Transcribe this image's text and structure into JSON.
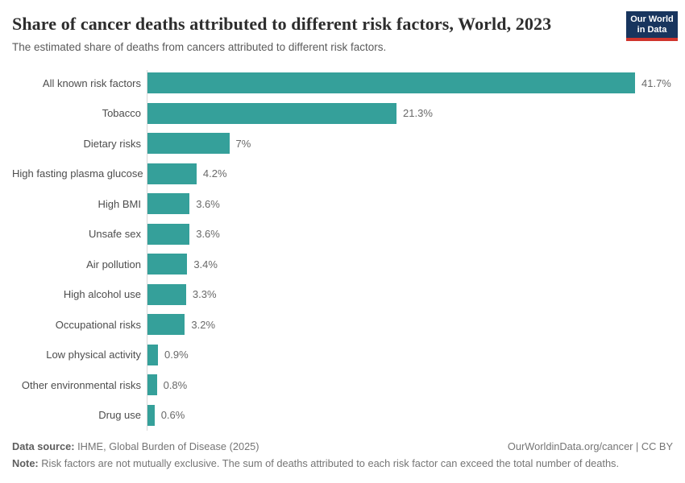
{
  "header": {
    "title": "Share of cancer deaths attributed to different risk factors, World, 2023",
    "subtitle": "The estimated share of deaths from cancers attributed to different risk factors.",
    "logo": {
      "line1": "Our World",
      "line2": "in Data"
    }
  },
  "chart_data": {
    "type": "bar",
    "orientation": "horizontal",
    "title": "Share of cancer deaths attributed to different risk factors, World, 2023",
    "subtitle": "The estimated share of deaths from cancers attributed to different risk factors.",
    "unit": "%",
    "categories": [
      "All known risk factors",
      "Tobacco",
      "Dietary risks",
      "High fasting plasma glucose",
      "High BMI",
      "Unsafe sex",
      "Air pollution",
      "High alcohol use",
      "Occupational risks",
      "Low physical activity",
      "Other environmental risks",
      "Drug use"
    ],
    "values": [
      41.7,
      21.3,
      7,
      4.2,
      3.6,
      3.6,
      3.4,
      3.3,
      3.2,
      0.9,
      0.8,
      0.6
    ],
    "value_labels": [
      "41.7%",
      "21.3%",
      "7%",
      "4.2%",
      "3.6%",
      "3.6%",
      "3.4%",
      "3.3%",
      "3.2%",
      "0.9%",
      "0.8%",
      "0.6%"
    ],
    "xlim": [
      0,
      41.7
    ],
    "grid": false,
    "legend": "none",
    "bar_color": "#35a09a",
    "axis_line_color": "#d8d8d8"
  },
  "footer": {
    "datasource_label": "Data source:",
    "datasource_text": " IHME, Global Burden of Disease (2025)",
    "attribution": "OurWorldinData.org/cancer | CC BY",
    "note_label": "Note:",
    "note_text": " Risk factors are not mutually exclusive. The sum of deaths attributed to each risk factor can exceed the total number of deaths."
  }
}
